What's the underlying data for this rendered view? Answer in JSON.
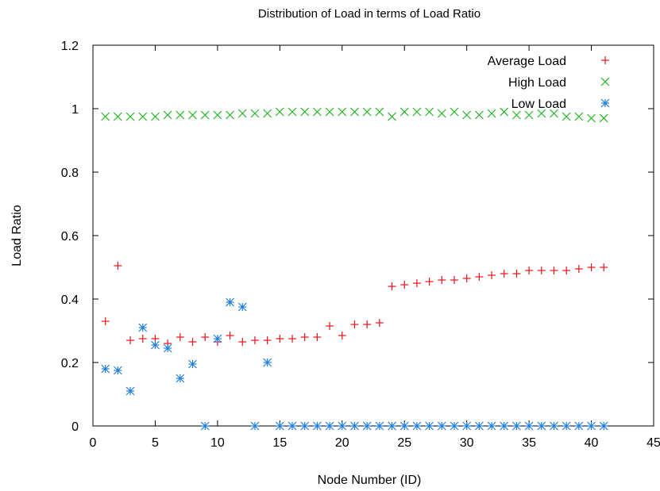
{
  "chart_data": {
    "type": "scatter",
    "title": "Distribution of Load in terms of Load Ratio",
    "xlabel": "Node Number (ID)",
    "ylabel": "Load Ratio",
    "xlim": [
      0,
      45
    ],
    "ylim": [
      0,
      1.2
    ],
    "x_ticks": [
      "0",
      "5",
      "10",
      "15",
      "20",
      "25",
      "30",
      "35",
      "40",
      "45"
    ],
    "y_ticks": [
      "0",
      "0.2",
      "0.4",
      "0.6",
      "0.8",
      "1",
      "1.2"
    ],
    "grid": false,
    "legend_position": "top-right",
    "series": [
      {
        "name": "Average Load",
        "marker": "plus",
        "color": "#e8141a",
        "x": [
          1,
          2,
          3,
          4,
          5,
          6,
          7,
          8,
          9,
          10,
          11,
          12,
          13,
          14,
          15,
          16,
          17,
          18,
          19,
          20,
          21,
          22,
          23,
          24,
          25,
          26,
          27,
          28,
          29,
          30,
          31,
          32,
          33,
          34,
          35,
          36,
          37,
          38,
          39,
          40,
          41
        ],
        "y": [
          0.33,
          0.505,
          0.27,
          0.275,
          0.275,
          0.26,
          0.28,
          0.265,
          0.28,
          0.265,
          0.285,
          0.265,
          0.27,
          0.27,
          0.275,
          0.275,
          0.28,
          0.28,
          0.315,
          0.285,
          0.32,
          0.32,
          0.325,
          0.44,
          0.445,
          0.45,
          0.455,
          0.46,
          0.46,
          0.465,
          0.47,
          0.475,
          0.48,
          0.48,
          0.49,
          0.49,
          0.49,
          0.49,
          0.495,
          0.5,
          0.5
        ]
      },
      {
        "name": "High Load",
        "marker": "cross",
        "color": "#21b321",
        "x": [
          1,
          2,
          3,
          4,
          5,
          6,
          7,
          8,
          9,
          10,
          11,
          12,
          13,
          14,
          15,
          16,
          17,
          18,
          19,
          20,
          21,
          22,
          23,
          24,
          25,
          26,
          27,
          28,
          29,
          30,
          31,
          32,
          33,
          34,
          35,
          36,
          37,
          38,
          39,
          40,
          41
        ],
        "y": [
          0.975,
          0.975,
          0.975,
          0.975,
          0.975,
          0.98,
          0.98,
          0.98,
          0.98,
          0.98,
          0.98,
          0.985,
          0.985,
          0.985,
          0.99,
          0.99,
          0.99,
          0.99,
          0.99,
          0.99,
          0.99,
          0.99,
          0.99,
          0.975,
          0.99,
          0.99,
          0.99,
          0.985,
          0.99,
          0.98,
          0.98,
          0.985,
          0.99,
          0.98,
          0.98,
          0.985,
          0.985,
          0.975,
          0.975,
          0.97,
          0.97
        ]
      },
      {
        "name": "Low Load",
        "marker": "star",
        "color": "#1f7fe0",
        "x": [
          1,
          2,
          3,
          4,
          5,
          6,
          7,
          8,
          9,
          10,
          11,
          12,
          13,
          14,
          15,
          16,
          17,
          18,
          19,
          20,
          21,
          22,
          23,
          24,
          25,
          26,
          27,
          28,
          29,
          30,
          31,
          32,
          33,
          34,
          35,
          36,
          37,
          38,
          39,
          40,
          41
        ],
        "y": [
          0.18,
          0.175,
          0.11,
          0.31,
          0.255,
          0.245,
          0.15,
          0.195,
          0,
          0.275,
          0.39,
          0.375,
          0,
          0.2,
          0,
          0,
          0,
          0,
          0,
          0,
          0,
          0,
          0,
          0,
          0,
          0,
          0,
          0,
          0,
          0,
          0,
          0,
          0,
          0,
          0,
          0,
          0,
          0,
          0,
          0,
          0
        ]
      }
    ]
  }
}
